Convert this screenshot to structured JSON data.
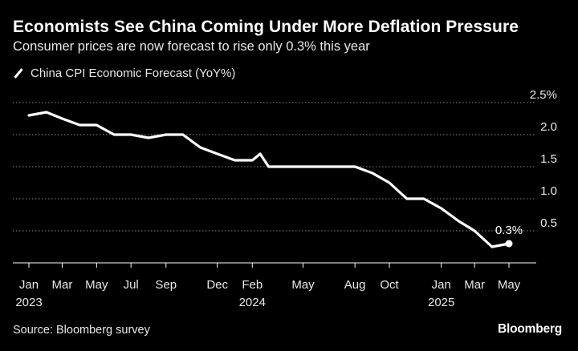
{
  "title": "Economists See China Coming Under More Deflation Pressure",
  "subtitle": "Consumer prices are now forecast to rise only 0.3% this year",
  "source": "Source: Bloomberg survey",
  "brand": "Bloomberg",
  "colors": {
    "background": "#000000",
    "line": "#ffffff",
    "grid": "#8a8a8a",
    "text": "#e8e8e8"
  },
  "chart_data": {
    "type": "line",
    "title": "Economists See China Coming Under More Deflation Pressure",
    "subtitle": "Consumer prices are now forecast to rise only 0.3% this year",
    "series": [
      {
        "name": "China CPI Economic Forecast (YoY%)",
        "x": [
          "2023-01",
          "2023-02",
          "2023-03",
          "2023-04",
          "2023-05",
          "2023-06",
          "2023-07",
          "2023-08",
          "2023-09",
          "2023-10",
          "2023-11",
          "2023-12",
          "2024-01",
          "2024-02",
          "2024-02-15",
          "2024-03",
          "2024-04",
          "2024-05",
          "2024-06",
          "2024-07",
          "2024-08",
          "2024-09",
          "2024-10",
          "2024-11",
          "2024-12",
          "2025-01",
          "2025-02",
          "2025-03",
          "2025-04",
          "2025-05"
        ],
        "values": [
          2.3,
          2.35,
          2.25,
          2.15,
          2.15,
          2.0,
          2.0,
          1.95,
          2.0,
          2.0,
          1.8,
          1.7,
          1.6,
          1.6,
          1.7,
          1.5,
          1.5,
          1.5,
          1.5,
          1.5,
          1.5,
          1.4,
          1.25,
          1.0,
          1.0,
          0.85,
          0.65,
          0.5,
          0.25,
          0.3
        ]
      }
    ],
    "highlight": {
      "x": "2025-05",
      "value": 0.3,
      "label": "0.3%"
    },
    "ylim": [
      0,
      2.5
    ],
    "yticks": [
      0.5,
      1.0,
      1.5,
      2.0,
      2.5
    ],
    "ytick_labels": [
      "0.5",
      "1.0",
      "1.5",
      "2.0",
      "2.5%"
    ],
    "xticks": [
      {
        "x": "2023-01",
        "label": "Jan",
        "year": "2023"
      },
      {
        "x": "2023-03",
        "label": "Mar",
        "year": ""
      },
      {
        "x": "2023-05",
        "label": "May",
        "year": ""
      },
      {
        "x": "2023-07",
        "label": "Jul",
        "year": ""
      },
      {
        "x": "2023-09",
        "label": "Sep",
        "year": ""
      },
      {
        "x": "2023-12",
        "label": "Dec",
        "year": ""
      },
      {
        "x": "2024-02",
        "label": "Feb",
        "year": "2024"
      },
      {
        "x": "2024-05",
        "label": "May",
        "year": ""
      },
      {
        "x": "2024-08",
        "label": "Aug",
        "year": ""
      },
      {
        "x": "2024-10",
        "label": "Oct",
        "year": ""
      },
      {
        "x": "2025-01",
        "label": "Jan",
        "year": "2025"
      },
      {
        "x": "2025-03",
        "label": "Mar",
        "year": ""
      },
      {
        "x": "2025-05",
        "label": "May",
        "year": ""
      }
    ],
    "grid": true,
    "legend": "top-left"
  }
}
